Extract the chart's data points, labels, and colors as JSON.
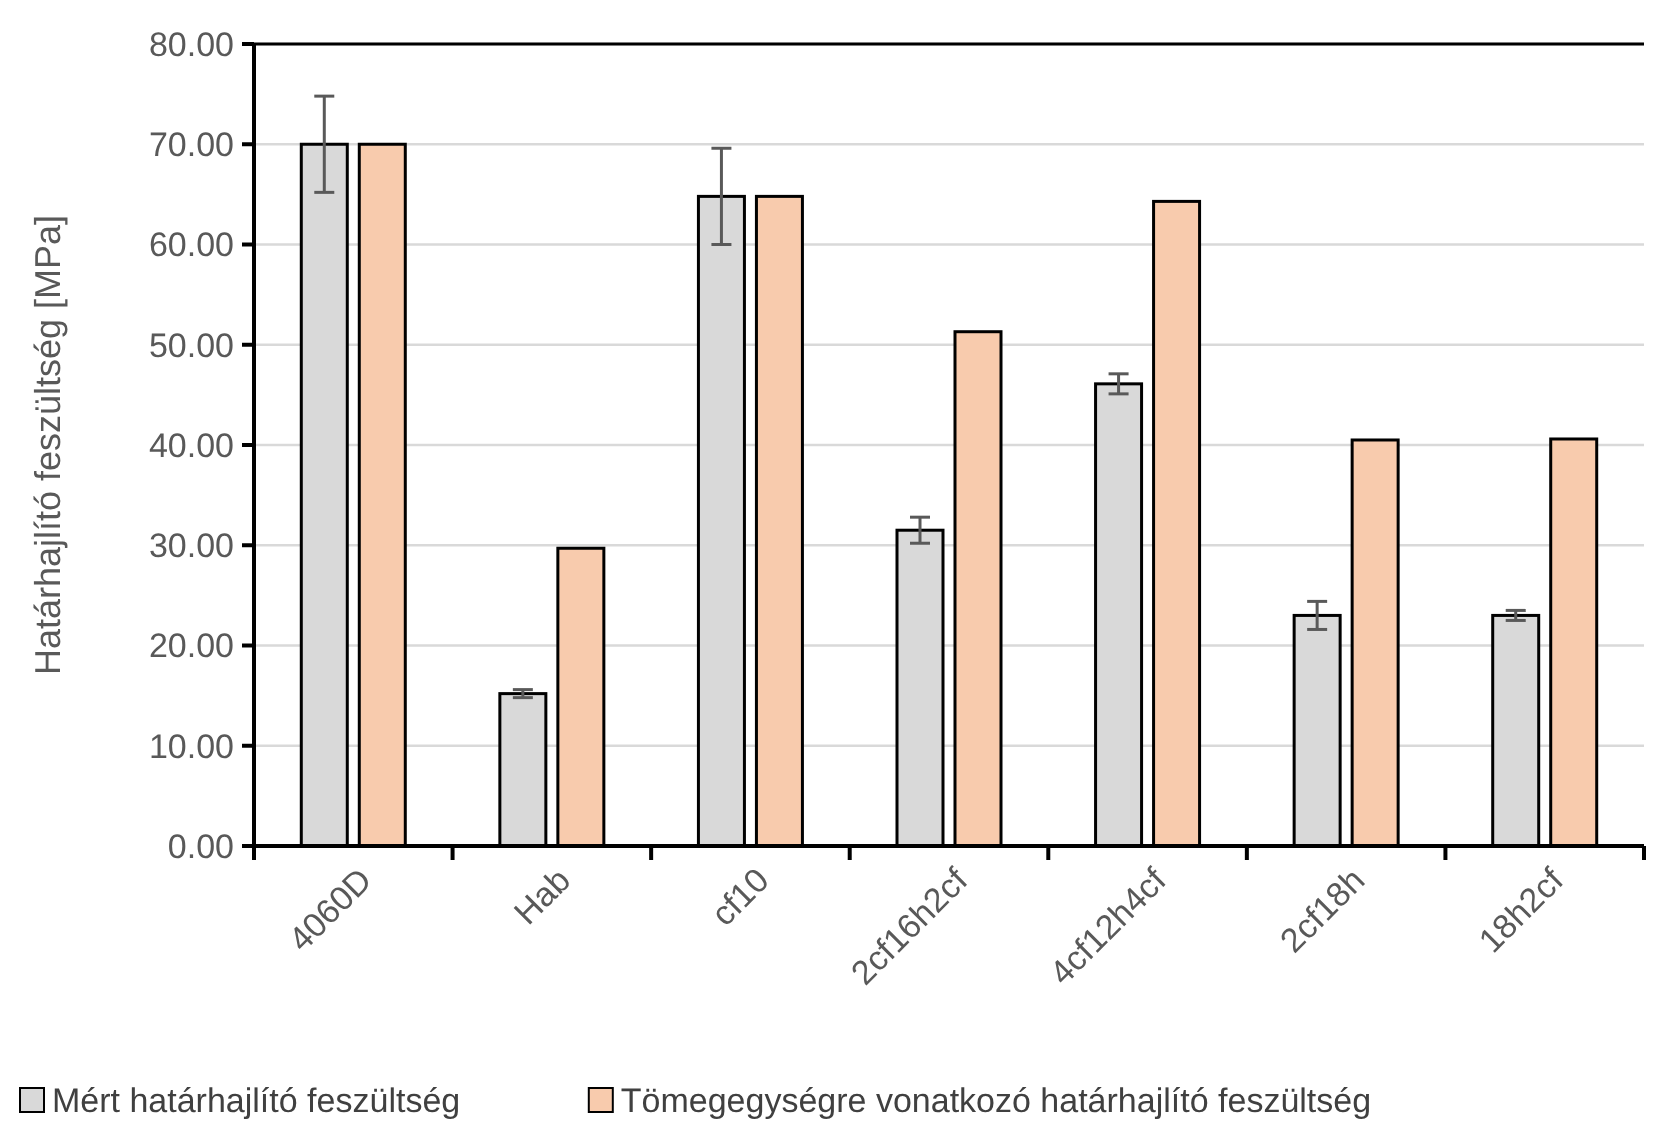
{
  "chart_data": {
    "type": "bar",
    "ylabel": "Határhajlító feszültség [MPa]",
    "categories": [
      "4060D",
      "Hab",
      "cf10",
      "2cf16h2cf",
      "4cf12h4cf",
      "2cf18h",
      "18h2cf"
    ],
    "series": [
      {
        "name": "Mért határhajlító feszültség",
        "color": "#d9d9d9",
        "values": [
          70.0,
          15.2,
          64.8,
          31.5,
          46.1,
          23.0,
          23.0
        ],
        "errors": [
          4.8,
          0.4,
          4.8,
          1.3,
          1.0,
          1.4,
          0.5
        ]
      },
      {
        "name": "Tömegegységre vonatkozó határhajlító feszültség",
        "color": "#f8cbad",
        "values": [
          70.0,
          29.7,
          64.8,
          51.3,
          64.3,
          40.5,
          40.6
        ]
      }
    ],
    "ylim": [
      0,
      80
    ],
    "yticks": [
      {
        "value": 0,
        "label": "0.00"
      },
      {
        "value": 10,
        "label": "10.00"
      },
      {
        "value": 20,
        "label": "20.00"
      },
      {
        "value": 30,
        "label": "30.00"
      },
      {
        "value": 40,
        "label": "40.00"
      },
      {
        "value": 50,
        "label": "50.00"
      },
      {
        "value": 60,
        "label": "60.00"
      },
      {
        "value": 70,
        "label": "70.00"
      },
      {
        "value": 80,
        "label": "80.00"
      }
    ],
    "grid": "y",
    "legend": "bottom"
  }
}
